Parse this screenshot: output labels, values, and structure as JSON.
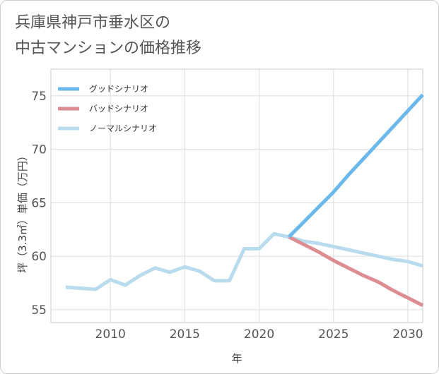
{
  "chart_data": {
    "type": "line",
    "title": [
      "兵庫県神戸市垂水区の",
      "中古マンションの価格推移"
    ],
    "xlabel": "年",
    "ylabel": "坪（3.3㎡）単価（万円）",
    "xlim": [
      2006,
      2031
    ],
    "ylim": [
      53.8,
      77.5
    ],
    "xticks": [
      2010,
      2015,
      2020,
      2025,
      2030
    ],
    "yticks": [
      55,
      60,
      65,
      70,
      75
    ],
    "grid": true,
    "legend_position": "top-left",
    "series": [
      {
        "name": "グッドシナリオ",
        "color": "#6bb8ea",
        "x": [
          2022,
          2023,
          2024,
          2025,
          2026,
          2027,
          2028,
          2029,
          2030,
          2031
        ],
        "values": [
          61.8,
          63.2,
          64.6,
          66.0,
          67.6,
          69.1,
          70.6,
          72.1,
          73.6,
          75.1
        ]
      },
      {
        "name": "バッドシナリオ",
        "color": "#dd8d92",
        "x": [
          2022,
          2023,
          2024,
          2025,
          2026,
          2027,
          2028,
          2029,
          2030,
          2031
        ],
        "values": [
          61.8,
          61.1,
          60.4,
          59.6,
          58.9,
          58.2,
          57.6,
          56.8,
          56.1,
          55.4
        ]
      },
      {
        "name": "ノーマルシナリオ",
        "color": "#b8dced",
        "x": [
          2007,
          2008,
          2009,
          2010,
          2011,
          2012,
          2013,
          2014,
          2015,
          2016,
          2017,
          2018,
          2019,
          2020,
          2021,
          2022,
          2023,
          2024,
          2025,
          2026,
          2027,
          2028,
          2029,
          2030,
          2031
        ],
        "values": [
          57.1,
          57.0,
          56.9,
          57.8,
          57.3,
          58.2,
          58.9,
          58.5,
          59.0,
          58.6,
          57.7,
          57.7,
          60.7,
          60.7,
          62.1,
          61.8,
          61.4,
          61.2,
          60.9,
          60.6,
          60.3,
          60.0,
          59.7,
          59.5,
          59.1
        ]
      }
    ]
  }
}
